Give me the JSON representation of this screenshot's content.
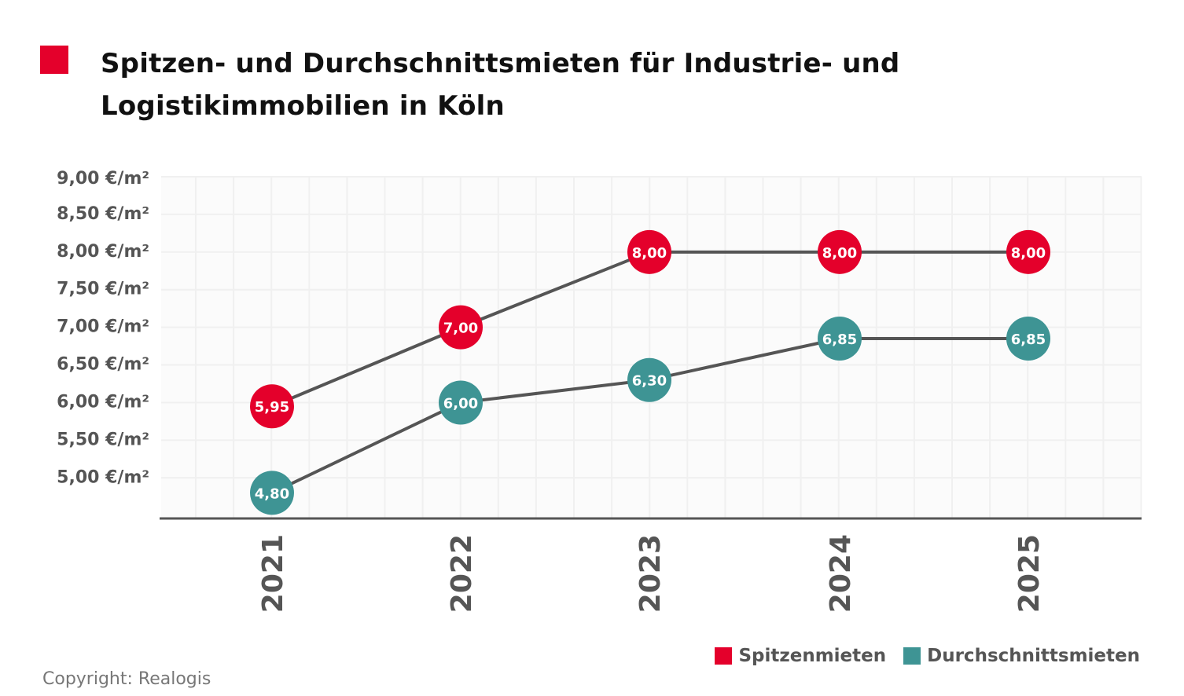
{
  "title": "Spitzen- und Durchschnittsmieten für Industrie- und Logistikimmobilien in Köln",
  "copyright": "Copyright: Realogis",
  "colors": {
    "accent": "#e4002b",
    "teal": "#3e9494",
    "line": "#555555",
    "plot_bg": "#fbfbfb",
    "grid": "#f0f0f0"
  },
  "chart_data": {
    "type": "line",
    "title": "Spitzen- und Durchschnittsmieten für Industrie- und Logistikimmobilien in Köln",
    "categories": [
      "2021",
      "2022",
      "2023",
      "2024",
      "2025"
    ],
    "ylim": [
      4.46,
      9.0
    ],
    "yticks": [
      {
        "value": 9.0,
        "label": "9,00 €/m²"
      },
      {
        "value": 8.5,
        "label": "8,50 €/m²"
      },
      {
        "value": 8.0,
        "label": "8,00 €/m²"
      },
      {
        "value": 7.5,
        "label": "7,50 €/m²"
      },
      {
        "value": 7.0,
        "label": "7,00 €/m²"
      },
      {
        "value": 6.5,
        "label": "6,50 €/m²"
      },
      {
        "value": 6.0,
        "label": "6,00 €/m²"
      },
      {
        "value": 5.5,
        "label": "5,50 €/m²"
      },
      {
        "value": 5.0,
        "label": "5,00 €/m²"
      }
    ],
    "grid": true,
    "legend_position": "bottom-right",
    "series": [
      {
        "name": "Spitzenmieten",
        "color": "#e4002b",
        "values": [
          5.95,
          7.0,
          8.0,
          8.0,
          8.0
        ],
        "labels": [
          "5,95",
          "7,00",
          "8,00",
          "8,00",
          "8,00"
        ]
      },
      {
        "name": "Durchschnittsmieten",
        "color": "#3e9494",
        "values": [
          4.8,
          6.0,
          6.3,
          6.85,
          6.85
        ],
        "labels": [
          "4,80",
          "6,00",
          "6,30",
          "6,85",
          "6,85"
        ]
      }
    ]
  }
}
